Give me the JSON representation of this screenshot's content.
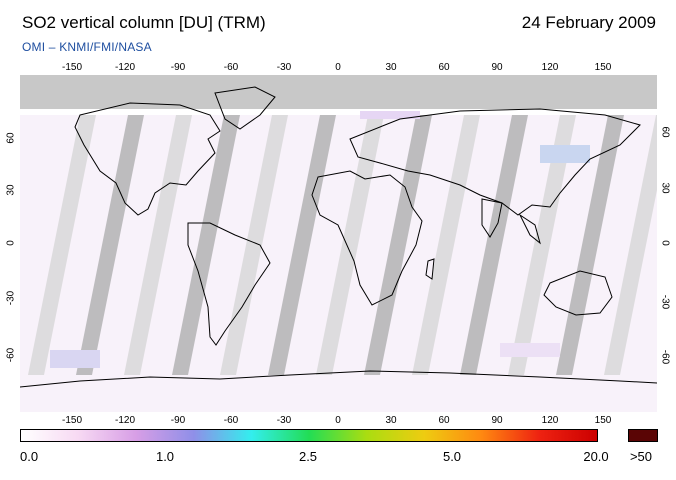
{
  "header": {
    "title": "SO2 vertical column [DU] (TRM)",
    "date": "24 February 2009",
    "subtitle": "OMI  –  KNMI/FMI/NASA"
  },
  "map": {
    "lon_ticks": [
      "-150",
      "-120",
      "-90",
      "-60",
      "-30",
      "0",
      "30",
      "60",
      "90",
      "120",
      "150"
    ],
    "lat_ticks": [
      "60",
      "30",
      "0",
      "-30",
      "-60"
    ],
    "colors": {
      "polar_no_data": "#c8c8c8",
      "swath_gap": "#d4d4d4",
      "swath_gap_dark": "#a9a9a9",
      "coastline": "#000000"
    }
  },
  "colorbar": {
    "labels": [
      {
        "text": "0.0",
        "value": 0.0
      },
      {
        "text": "1.0",
        "value": 1.0
      },
      {
        "text": "2.5",
        "value": 2.5
      },
      {
        "text": "5.0",
        "value": 5.0
      },
      {
        "text": "20.0",
        "value": 20.0
      }
    ],
    "overflow_label": ">50",
    "stops": [
      "#ffffff",
      "#f7d9f3",
      "#d79ee6",
      "#8f8fe8",
      "#33eeee",
      "#22dd55",
      "#aadd11",
      "#eecc11",
      "#ff8811",
      "#ee2211",
      "#cc0000"
    ],
    "overflow_color": "#5a0505"
  }
}
